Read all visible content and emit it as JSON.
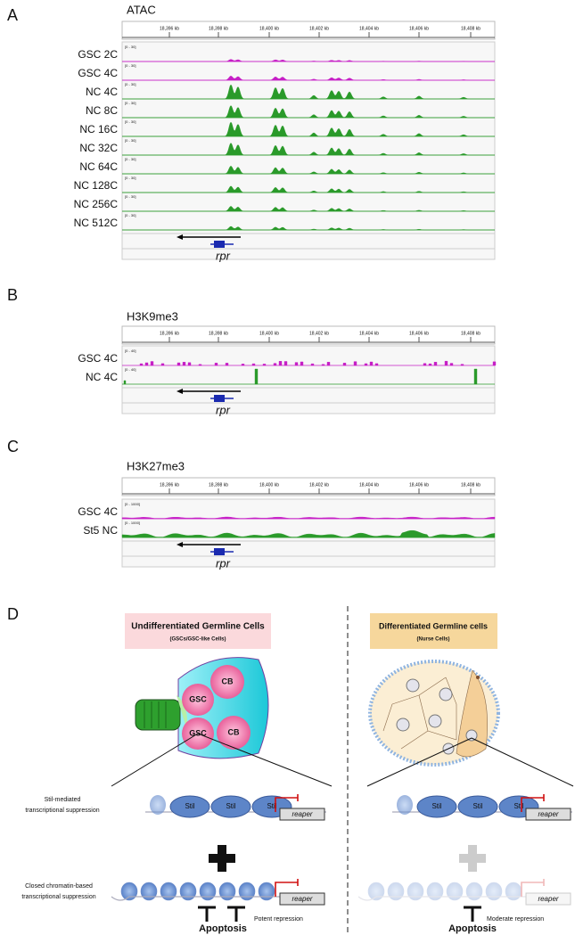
{
  "panels": [
    {
      "letter": "A",
      "title": "ATAC",
      "ruler": [
        "18,396 kb",
        "18,398 kb",
        "18,400 kb",
        "18,402 kb",
        "18,404 kb",
        "18,406 kb",
        "18,408 kb"
      ],
      "tracks": [
        {
          "label": "GSC 2C",
          "range": "[0 - 30]",
          "color": "#c61fc6"
        },
        {
          "label": "GSC 4C",
          "range": "[0 - 30]",
          "color": "#c61fc6"
        },
        {
          "label": "NC 4C",
          "range": "[0 - 30]",
          "color": "#2a9a2a"
        },
        {
          "label": "NC 8C",
          "range": "[0 - 30]",
          "color": "#2a9a2a"
        },
        {
          "label": "NC 16C",
          "range": "[0 - 30]",
          "color": "#2a9a2a"
        },
        {
          "label": "NC 32C",
          "range": "[0 - 30]",
          "color": "#2a9a2a"
        },
        {
          "label": "NC 64C",
          "range": "[0 - 30]",
          "color": "#2a9a2a"
        },
        {
          "label": "NC 128C",
          "range": "[0 - 30]",
          "color": "#2a9a2a"
        },
        {
          "label": "NC 256C",
          "range": "[0 - 30]",
          "color": "#2a9a2a"
        },
        {
          "label": "NC 512C",
          "range": "[0 - 30]",
          "color": "#2a9a2a"
        }
      ],
      "gene": "rpr"
    },
    {
      "letter": "B",
      "title": "H3K9me3",
      "ruler": [
        "18,396 kb",
        "18,398 kb",
        "18,400 kb",
        "18,402 kb",
        "18,404 kb",
        "18,406 kb",
        "18,408 kb"
      ],
      "tracks": [
        {
          "label": "GSC 4C",
          "range": "[0 - 40]",
          "color": "#c61fc6"
        },
        {
          "label": "NC 4C",
          "range": "[0 - 40]",
          "color": "#2a9a2a"
        }
      ],
      "gene": "rpr"
    },
    {
      "letter": "C",
      "title": "H3K27me3",
      "ruler": [
        "18,396 kb",
        "18,398 kb",
        "18,400 kb",
        "18,402 kb",
        "18,404 kb",
        "18,406 kb",
        "18,408 kb"
      ],
      "tracks": [
        {
          "label": "GSC 4C",
          "range": "[0 - 1000]",
          "color": "#c61fc6"
        },
        {
          "label": "St5 NC",
          "range": "[0 - 1000]",
          "color": "#2a9a2a"
        }
      ],
      "gene": "rpr"
    }
  ],
  "diagram": {
    "letter": "D",
    "left": {
      "title": "Undifferentiated Germline Cells",
      "subtitle": "(GSCs/GSC-like Cells)",
      "cells": [
        "GSC",
        "GSC",
        "CB",
        "CB"
      ],
      "stil": [
        "Stil",
        "Stil",
        "Stil"
      ],
      "gene": "reaper",
      "gene2": "reaper",
      "repression": "Potent repression",
      "outcome": "Apoptosis"
    },
    "right": {
      "title": "Differentiated Germline cells",
      "subtitle": "(Nurse Cells)",
      "stil": [
        "Stil",
        "Stil",
        "Stil"
      ],
      "gene": "reaper",
      "gene2": "reaper",
      "repression": "Moderate repression",
      "outcome": "Apoptosis"
    },
    "mechanisms": [
      {
        "line1": "Stil-mediated",
        "line2": "transcriptional suppression"
      },
      {
        "line1": "Closed chromatin-based",
        "line2": "transcriptional suppression"
      }
    ]
  }
}
